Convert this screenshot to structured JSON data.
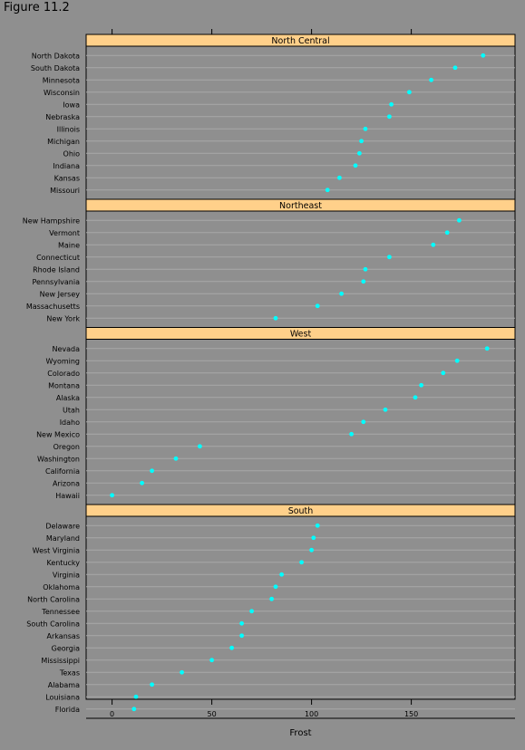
{
  "figure_title": "Figure 11.2",
  "chart_data": {
    "type": "scatter",
    "title": "",
    "xlabel": "Frost",
    "ylabel": "",
    "xlim": [
      -13,
      202
    ],
    "xticks": [
      0,
      50,
      100,
      150
    ],
    "grid": true,
    "colors": {
      "background": "#8f8f8f",
      "strip": "#ffd08a",
      "point": "#00ffff",
      "gridline": "#a8a8a8"
    },
    "panels": [
      {
        "name": "North Central",
        "categories": [
          "North Dakota",
          "South Dakota",
          "Minnesota",
          "Wisconsin",
          "Iowa",
          "Nebraska",
          "Illinois",
          "Michigan",
          "Ohio",
          "Indiana",
          "Kansas",
          "Missouri"
        ],
        "values": [
          186,
          172,
          160,
          149,
          140,
          139,
          127,
          125,
          124,
          122,
          114,
          108
        ]
      },
      {
        "name": "Northeast",
        "categories": [
          "New Hampshire",
          "Vermont",
          "Maine",
          "Connecticut",
          "Rhode Island",
          "Pennsylvania",
          "New Jersey",
          "Massachusetts",
          "New York"
        ],
        "values": [
          174,
          168,
          161,
          139,
          127,
          126,
          115,
          103,
          82
        ]
      },
      {
        "name": "West",
        "categories": [
          "Nevada",
          "Wyoming",
          "Colorado",
          "Montana",
          "Alaska",
          "Utah",
          "Idaho",
          "New Mexico",
          "Oregon",
          "Washington",
          "California",
          "Arizona",
          "Hawaii"
        ],
        "values": [
          188,
          173,
          166,
          155,
          152,
          137,
          126,
          120,
          44,
          32,
          20,
          15,
          0
        ]
      },
      {
        "name": "South",
        "categories": [
          "Delaware",
          "Maryland",
          "West Virginia",
          "Kentucky",
          "Virginia",
          "Oklahoma",
          "North Carolina",
          "Tennessee",
          "South Carolina",
          "Arkansas",
          "Georgia",
          "Mississippi",
          "Texas",
          "Alabama",
          "Louisiana",
          "Florida"
        ],
        "values": [
          103,
          101,
          100,
          95,
          85,
          82,
          80,
          70,
          65,
          65,
          60,
          50,
          35,
          20,
          12,
          11
        ]
      }
    ]
  }
}
